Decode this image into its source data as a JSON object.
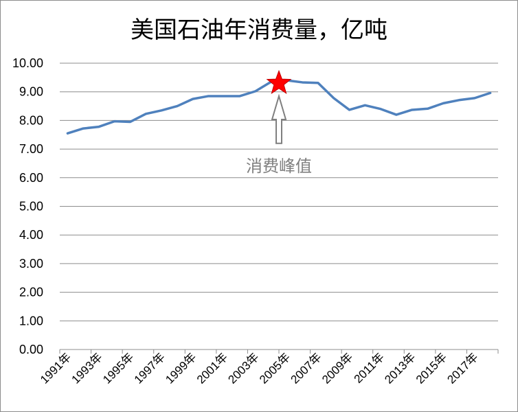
{
  "chart_data": {
    "type": "line",
    "title": "美国石油年消费量，亿吨",
    "xlabel": "",
    "ylabel": "",
    "ylim": [
      0,
      10
    ],
    "yticks": [
      "0.00",
      "1.00",
      "2.00",
      "3.00",
      "4.00",
      "5.00",
      "6.00",
      "7.00",
      "8.00",
      "9.00",
      "10.00"
    ],
    "grid": true,
    "x": [
      1991,
      1992,
      1993,
      1994,
      1995,
      1996,
      1997,
      1998,
      1999,
      2000,
      2001,
      2002,
      2003,
      2004,
      2005,
      2006,
      2007,
      2008,
      2009,
      2010,
      2011,
      2012,
      2013,
      2014,
      2015,
      2016,
      2017,
      2018
    ],
    "xtick_labels": [
      "1991年",
      "1993年",
      "1995年",
      "1997年",
      "1999年",
      "2001年",
      "2003年",
      "2005年",
      "2007年",
      "2009年",
      "2011年",
      "2013年",
      "2015年",
      "2017年"
    ],
    "series": [
      {
        "color": "#4f81bd",
        "values": [
          7.55,
          7.72,
          7.78,
          7.97,
          7.95,
          8.23,
          8.35,
          8.5,
          8.75,
          8.85,
          8.85,
          8.85,
          9.02,
          9.35,
          9.4,
          9.33,
          9.31,
          8.78,
          8.37,
          8.53,
          8.4,
          8.2,
          8.37,
          8.41,
          8.6,
          8.71,
          8.78,
          8.96
        ]
      }
    ],
    "annotations": [
      {
        "text": "消费峰值",
        "x": 2005,
        "y": 6.4,
        "color": "#7f7f7f"
      }
    ],
    "markers": [
      {
        "shape": "star",
        "x": 2004,
        "y": 9.3,
        "color": "#ff0000"
      }
    ],
    "arrows": [
      {
        "from_x": 2004,
        "from_y": 7.2,
        "to_x": 2004,
        "to_y": 8.85,
        "color": "#7f7f7f"
      }
    ]
  }
}
